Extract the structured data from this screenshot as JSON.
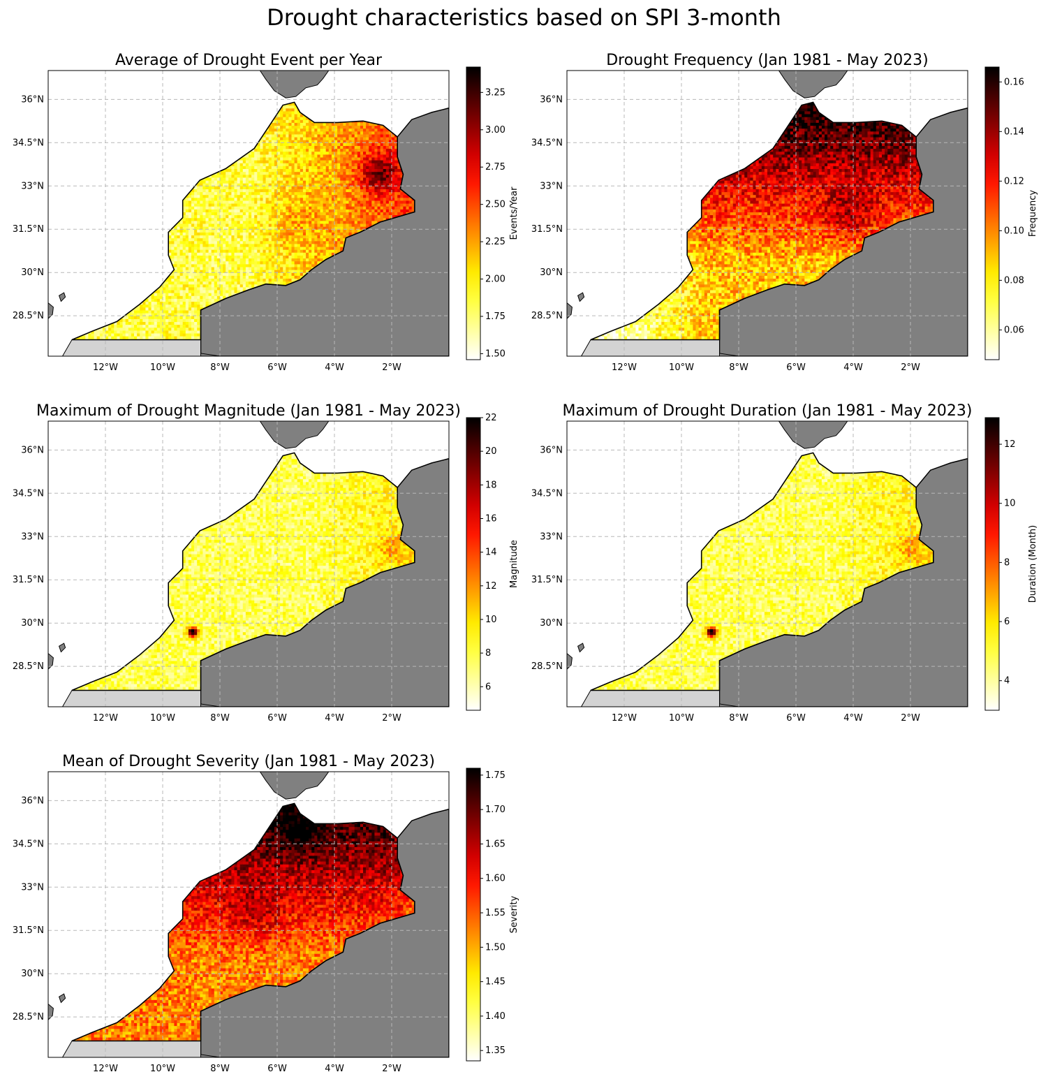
{
  "figure": {
    "suptitle": "Drought characteristics based on SPI 3-month",
    "x_ticks": [
      "12°W",
      "10°W",
      "8°W",
      "6°W",
      "4°W",
      "2°W"
    ],
    "y_ticks": [
      "36°N",
      "34.5°N",
      "33°N",
      "31.5°N",
      "30°N",
      "28.5°N"
    ],
    "colors": {
      "land": "#808080",
      "western_sahara": "#d3d3d3",
      "sea": "#ffffff",
      "gridline": "#b8b8b8",
      "coast": "#000000"
    },
    "colormap": "hot_r"
  },
  "panels": [
    {
      "id": "events",
      "title": "Average of Drought Event per Year",
      "cbar_label": "Events/Year",
      "cbar_ticks": [
        "1.50",
        "1.75",
        "2.00",
        "2.25",
        "2.50",
        "2.75",
        "3.00",
        "3.25"
      ],
      "vmin": 1.46,
      "vmax": 3.42,
      "pattern": "east-high"
    },
    {
      "id": "frequency",
      "title": "Drought Frequency (Jan 1981 - May 2023)",
      "cbar_label": "Frequency",
      "cbar_ticks": [
        "0.06",
        "0.08",
        "0.10",
        "0.12",
        "0.14",
        "0.16"
      ],
      "vmin": 0.048,
      "vmax": 0.166,
      "pattern": "north-center-high"
    },
    {
      "id": "magnitude",
      "title": "Maximum of Drought Magnitude (Jan 1981 - May 2023)",
      "cbar_label": "Magnitude",
      "cbar_ticks": [
        "6",
        "8",
        "10",
        "12",
        "14",
        "16",
        "18",
        "20",
        "22"
      ],
      "vmin": 4.6,
      "vmax": 22,
      "pattern": "low-hotspot"
    },
    {
      "id": "duration",
      "title": "Maximum of Drought Duration (Jan 1981 - May 2023)",
      "cbar_label": "Duration (Month)",
      "cbar_ticks": [
        "4",
        "6",
        "8",
        "10",
        "12"
      ],
      "vmin": 3.0,
      "vmax": 12.9,
      "pattern": "low-hotspot"
    },
    {
      "id": "severity",
      "title": "Mean of Drought Severity (Jan 1981 - May 2023)",
      "cbar_label": "Severity",
      "cbar_ticks": [
        "1.35",
        "1.40",
        "1.45",
        "1.50",
        "1.55",
        "1.60",
        "1.65",
        "1.70",
        "1.75"
      ],
      "vmin": 1.335,
      "vmax": 1.76,
      "pattern": "north-high"
    }
  ]
}
